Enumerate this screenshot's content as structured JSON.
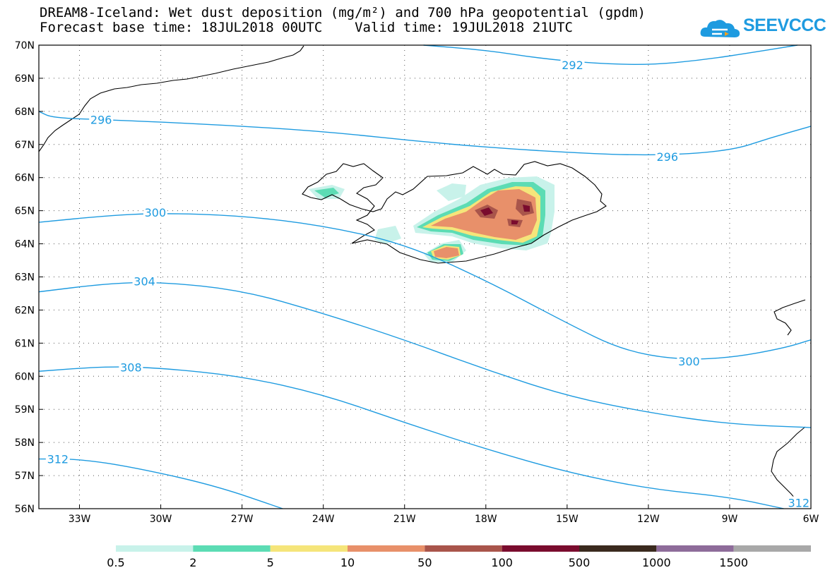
{
  "header": {
    "title_line1": "DREAM8-Iceland: Wet dust deposition (mg/m²) and 700 hPa geopotential (gpdm)",
    "title_line2": "Forecast base time: 18JUL2018 00UTC    Valid time: 19JUL2018 21UTC",
    "logo_text": "SEEVCCC"
  },
  "map": {
    "lon_range": [
      -34.5,
      -6
    ],
    "lat_range": [
      56,
      70
    ],
    "lon_ticks": [
      {
        "lon": -33,
        "label": "33W"
      },
      {
        "lon": -30,
        "label": "30W"
      },
      {
        "lon": -27,
        "label": "27W"
      },
      {
        "lon": -24,
        "label": "24W"
      },
      {
        "lon": -21,
        "label": "21W"
      },
      {
        "lon": -18,
        "label": "18W"
      },
      {
        "lon": -15,
        "label": "15W"
      },
      {
        "lon": -12,
        "label": "12W"
      },
      {
        "lon": -9,
        "label": "9W"
      },
      {
        "lon": -6,
        "label": "6W"
      }
    ],
    "lat_ticks": [
      {
        "lat": 70,
        "label": "70N"
      },
      {
        "lat": 69,
        "label": "69N"
      },
      {
        "lat": 68,
        "label": "68N"
      },
      {
        "lat": 67,
        "label": "67N"
      },
      {
        "lat": 66,
        "label": "66N"
      },
      {
        "lat": 65,
        "label": "65N"
      },
      {
        "lat": 64,
        "label": "64N"
      },
      {
        "lat": 63,
        "label": "63N"
      },
      {
        "lat": 62,
        "label": "62N"
      },
      {
        "lat": 61,
        "label": "61N"
      },
      {
        "lat": 60,
        "label": "60N"
      },
      {
        "lat": 59,
        "label": "59N"
      },
      {
        "lat": 58,
        "label": "58N"
      },
      {
        "lat": 57,
        "label": "57N"
      },
      {
        "lat": 56,
        "label": "56N"
      }
    ],
    "contour_color": "#1e9be0",
    "contours": [
      {
        "label": "292",
        "points": [
          [
            -20.3,
            70
          ],
          [
            -18,
            69.85
          ],
          [
            -16,
            69.6
          ],
          [
            -14,
            69.45
          ],
          [
            -12,
            69.4
          ],
          [
            -10,
            69.55
          ],
          [
            -8,
            69.8
          ],
          [
            -6.5,
            70
          ]
        ],
        "label_at": [
          -14.8,
          69.4
        ]
      },
      {
        "label": "296",
        "points": [
          [
            -34.5,
            68
          ],
          [
            -34,
            67.8
          ],
          [
            -32,
            67.75
          ],
          [
            -28,
            67.6
          ],
          [
            -24,
            67.4
          ],
          [
            -20,
            67.05
          ],
          [
            -16,
            66.8
          ],
          [
            -12,
            66.65
          ],
          [
            -9,
            66.8
          ],
          [
            -7.5,
            67.2
          ],
          [
            -6,
            67.55
          ]
        ],
        "label_at": [
          -32.2,
          67.75
        ],
        "label2_at": [
          -11.3,
          66.63
        ]
      },
      {
        "label": "300",
        "points": [
          [
            -34.5,
            64.65
          ],
          [
            -32,
            64.85
          ],
          [
            -30,
            64.93
          ],
          [
            -27,
            64.85
          ],
          [
            -24,
            64.55
          ],
          [
            -21,
            64.0
          ],
          [
            -18,
            62.9
          ],
          [
            -15,
            61.6
          ],
          [
            -13,
            60.8
          ],
          [
            -11,
            60.5
          ],
          [
            -9,
            60.55
          ],
          [
            -7,
            60.85
          ],
          [
            -6,
            61.1
          ]
        ],
        "label_at": [
          -30.2,
          64.95
        ],
        "label2_at": [
          -10.5,
          60.45
        ]
      },
      {
        "label": "304",
        "points": [
          [
            -34.5,
            62.55
          ],
          [
            -32,
            62.8
          ],
          [
            -30,
            62.85
          ],
          [
            -27,
            62.6
          ],
          [
            -24,
            61.9
          ],
          [
            -21,
            61.1
          ],
          [
            -18,
            60.2
          ],
          [
            -15,
            59.4
          ],
          [
            -12,
            58.9
          ],
          [
            -9,
            58.55
          ],
          [
            -6,
            58.45
          ]
        ],
        "label_at": [
          -30.6,
          62.87
        ]
      },
      {
        "label": "308",
        "points": [
          [
            -34.5,
            60.15
          ],
          [
            -32,
            60.3
          ],
          [
            -30,
            60.25
          ],
          [
            -27,
            60.0
          ],
          [
            -24,
            59.45
          ],
          [
            -21,
            58.6
          ],
          [
            -18,
            57.8
          ],
          [
            -15,
            57.1
          ],
          [
            -12,
            56.6
          ],
          [
            -9,
            56.35
          ],
          [
            -7,
            56.0
          ]
        ],
        "label_at": [
          -31.1,
          60.27
        ]
      },
      {
        "label": "312",
        "points": [
          [
            -34.5,
            57.5
          ],
          [
            -33,
            57.5
          ],
          [
            -31,
            57.25
          ],
          [
            -28,
            56.7
          ],
          [
            -25.5,
            56.0
          ]
        ],
        "label_at": [
          -33.8,
          57.5
        ]
      },
      {
        "label": "312",
        "points": [
          [
            -6.7,
            56.0
          ],
          [
            -6.3,
            56.2
          ],
          [
            -6,
            56.25
          ]
        ],
        "label_at": [
          -6.45,
          56.18
        ]
      }
    ]
  },
  "legend": {
    "labels": [
      "0.5",
      "2",
      "5",
      "10",
      "50",
      "100",
      "500",
      "1000",
      "1500"
    ],
    "colors": [
      "#c8f2ea",
      "#5cdcb4",
      "#f5e57a",
      "#e8906a",
      "#a9554b",
      "#7a0c2e",
      "#3a2a1e",
      "#8e6c9a",
      "#a8a8a8"
    ]
  }
}
